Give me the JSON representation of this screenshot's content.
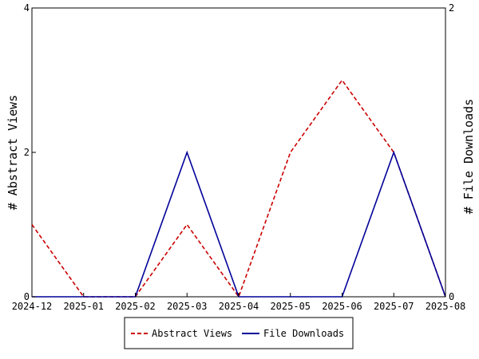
{
  "chart_data": {
    "type": "line",
    "categories": [
      "2024-12",
      "2025-01",
      "2025-02",
      "2025-03",
      "2025-04",
      "2025-05",
      "2025-06",
      "2025-07",
      "2025-08"
    ],
    "series": [
      {
        "name": "Abstract Views",
        "axis": "left",
        "color": "#cc0000",
        "dash": "dashed",
        "values": [
          1,
          0,
          0,
          1,
          0,
          2,
          3,
          2,
          0
        ]
      },
      {
        "name": "File Downloads",
        "axis": "right",
        "color": "#000099",
        "dash": "solid",
        "values": [
          0,
          0,
          0,
          1,
          0,
          0,
          0,
          1,
          0
        ]
      }
    ],
    "ylabel": "# Abstract Views",
    "y2label": "# File Downloads",
    "ylim": [
      0,
      4
    ],
    "y2lim": [
      0,
      2
    ],
    "yticks": [
      "0",
      "2",
      "4"
    ],
    "y2ticks": [
      "0",
      "2"
    ],
    "legend_position": "bottom-center",
    "grid": false
  }
}
